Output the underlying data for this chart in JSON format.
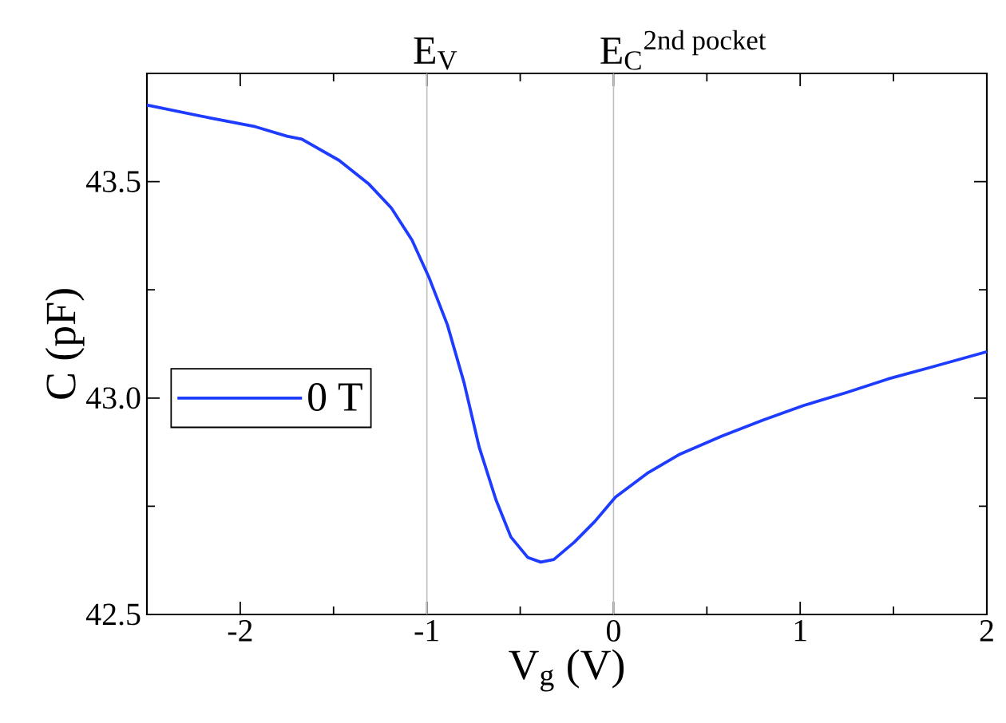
{
  "chart_data": {
    "type": "line",
    "xlabel": "V$_{g}$ (V)",
    "ylabel": "C (pF)",
    "x": [
      -2.5,
      -2.16,
      -1.92,
      -1.75,
      -1.67,
      -1.47,
      -1.31,
      -1.19,
      -1.08,
      -0.99,
      -0.89,
      -0.8,
      -0.72,
      -0.63,
      -0.55,
      -0.46,
      -0.39,
      -0.32,
      -0.21,
      -0.1,
      0.01,
      0.18,
      0.35,
      0.58,
      0.8,
      1.02,
      1.25,
      1.47,
      1.7,
      2.0
    ],
    "series": [
      {
        "name": "0 T",
        "color": "#1e3cff",
        "values": [
          43.677,
          43.647,
          43.627,
          43.605,
          43.598,
          43.549,
          43.494,
          43.439,
          43.365,
          43.28,
          43.169,
          43.034,
          42.887,
          42.765,
          42.679,
          42.632,
          42.621,
          42.627,
          42.667,
          42.715,
          42.771,
          42.826,
          42.869,
          42.912,
          42.949,
          42.983,
          43.013,
          43.044,
          43.071,
          43.107
        ]
      }
    ],
    "xlim": [
      -2.5,
      2
    ],
    "ylim": [
      42.5,
      43.75
    ],
    "xticks": [
      -2,
      {
        "value": -1.5,
        "label": null
      },
      -1,
      {
        "value": -0.5,
        "label": null
      },
      0,
      {
        "value": 0.5,
        "label": null
      },
      1,
      {
        "value": 1.5,
        "label": null
      },
      2
    ],
    "yticks": [
      42.5,
      {
        "value": 42.75,
        "label": null
      },
      {
        "value": 43.0,
        "label": "43.0"
      },
      {
        "value": 43.25,
        "label": null
      },
      43.5
    ],
    "ref_lines": [
      {
        "axis": "x",
        "value": -1,
        "label": "E$_{V}$",
        "color": "#bfbfbf"
      },
      {
        "axis": "x",
        "value": 0,
        "label": "E$_{C}$$^{2nd pocket}$",
        "color": "#bfbfbf"
      }
    ],
    "legend": "left"
  }
}
